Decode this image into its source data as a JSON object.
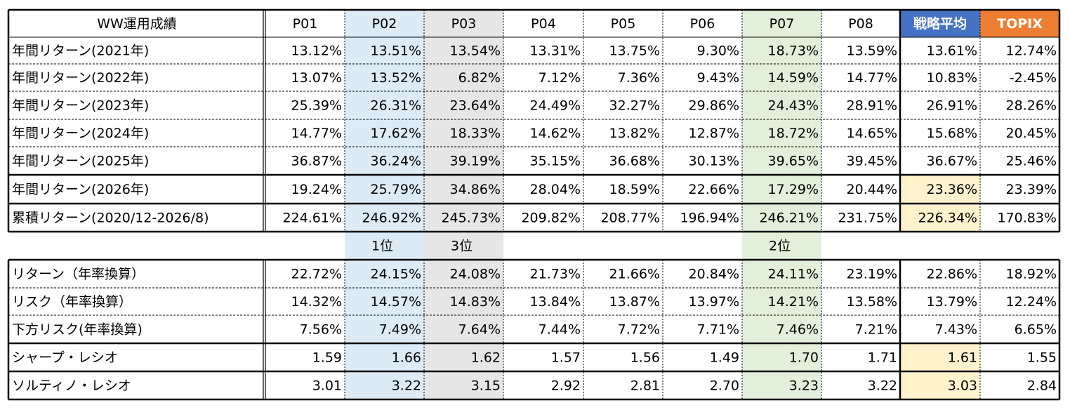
{
  "table1": {
    "header": [
      "WW運用成績",
      "P01",
      "P02",
      "P03",
      "P04",
      "P05",
      "P06",
      "P07",
      "P08",
      "戦略平均",
      "TOPIX"
    ],
    "rows": [
      [
        "年間リターン(2021年)",
        "13.12%",
        "13.51%",
        "13.54%",
        "13.31%",
        "13.75%",
        "9.30%",
        "18.73%",
        "13.59%",
        "13.61%",
        "12.74%"
      ],
      [
        "年間リターン(2022年)",
        "13.07%",
        "13.52%",
        "6.82%",
        "7.12%",
        "7.36%",
        "9.43%",
        "14.59%",
        "14.77%",
        "10.83%",
        "-2.45%"
      ],
      [
        "年間リターン(2023年)",
        "25.39%",
        "26.31%",
        "23.64%",
        "24.49%",
        "32.27%",
        "29.86%",
        "24.43%",
        "28.91%",
        "26.91%",
        "28.26%"
      ],
      [
        "年間リターン(2024年)",
        "14.77%",
        "17.62%",
        "18.33%",
        "14.62%",
        "13.82%",
        "12.87%",
        "18.72%",
        "14.65%",
        "15.68%",
        "20.45%"
      ],
      [
        "年間リターン(2025年)",
        "36.87%",
        "36.24%",
        "39.19%",
        "35.15%",
        "36.68%",
        "30.13%",
        "39.65%",
        "39.45%",
        "36.67%",
        "25.46%"
      ],
      [
        "年間リターン(2026年)",
        "19.24%",
        "25.79%",
        "34.86%",
        "28.04%",
        "18.59%",
        "22.66%",
        "17.29%",
        "20.44%",
        "23.36%",
        "23.39%"
      ],
      [
        "累積リターン(2020/12-2026/8)",
        "224.61%",
        "246.92%",
        "245.73%",
        "209.82%",
        "208.77%",
        "196.94%",
        "246.21%",
        "231.75%",
        "226.34%",
        "170.83%"
      ]
    ]
  },
  "ranks": [
    null,
    null,
    "1位",
    "3位",
    null,
    null,
    null,
    "2位",
    null,
    null,
    null
  ],
  "table2": {
    "rows": [
      [
        "リターン（年率換算）",
        "22.72%",
        "24.15%",
        "24.08%",
        "21.73%",
        "21.66%",
        "20.84%",
        "24.11%",
        "23.19%",
        "22.86%",
        "18.92%"
      ],
      [
        "リスク（年率換算）",
        "14.32%",
        "14.57%",
        "14.83%",
        "13.84%",
        "13.87%",
        "13.97%",
        "14.21%",
        "13.58%",
        "13.79%",
        "12.24%"
      ],
      [
        "下方リスク(年率換算)",
        "7.56%",
        "7.49%",
        "7.64%",
        "7.44%",
        "7.72%",
        "7.71%",
        "7.46%",
        "7.21%",
        "7.43%",
        "6.65%"
      ],
      [
        "シャープ・レシオ",
        "1.59",
        "1.66",
        "1.62",
        "1.57",
        "1.56",
        "1.49",
        "1.70",
        "1.71",
        "1.61",
        "1.55"
      ],
      [
        "ソルティノ・レシオ",
        "3.01",
        "3.22",
        "3.15",
        "2.92",
        "2.81",
        "2.70",
        "3.23",
        "3.22",
        "3.03",
        "2.84"
      ]
    ]
  }
}
